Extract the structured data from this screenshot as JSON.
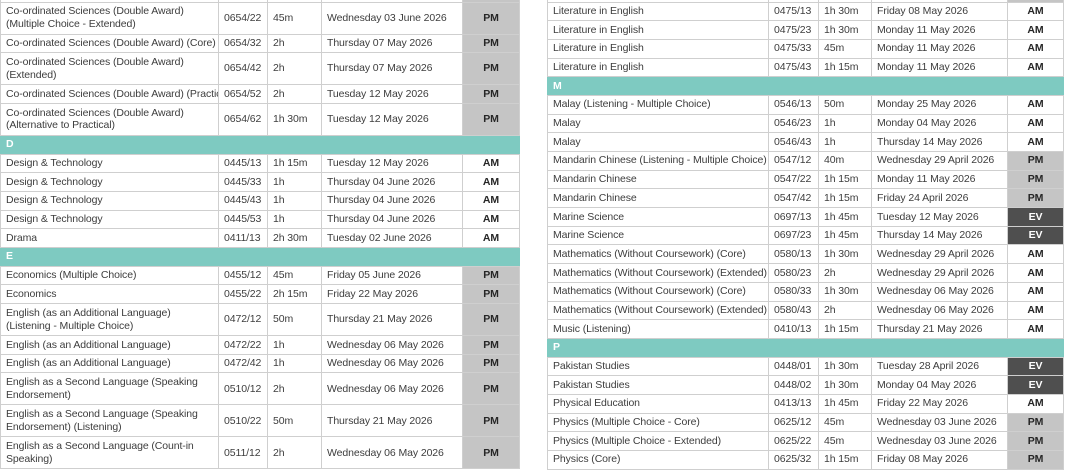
{
  "colors": {
    "section_bg": "#7ecac1",
    "section_fg": "#ffffff",
    "border": "#cfcfcf",
    "text": "#3d3d3d",
    "sessions": {
      "AM": {
        "bg": "#ffffff",
        "fg": "#262626"
      },
      "PM": {
        "bg": "#c5c5c5",
        "fg": "#262626"
      },
      "EV": {
        "bg": "#4f4f4f",
        "fg": "#ffffff"
      }
    }
  },
  "tables": [
    {
      "name": "timetable-left-column",
      "rows": [
        {
          "type": "partial",
          "session": "PM"
        },
        {
          "type": "row",
          "lines": 2,
          "subject": "Co-ordinated Sciences (Double Award) (Multiple Choice - Extended)",
          "code": "0654/22",
          "duration": "45m",
          "date": "Wednesday 03 June 2026",
          "session": "PM"
        },
        {
          "type": "row",
          "lines": 1,
          "subject": "Co-ordinated Sciences (Double Award) (Core)",
          "code": "0654/32",
          "duration": "2h",
          "date": "Thursday 07 May 2026",
          "session": "PM"
        },
        {
          "type": "row",
          "lines": 2,
          "subject": "Co-ordinated Sciences (Double Award) (Extended)",
          "code": "0654/42",
          "duration": "2h",
          "date": "Thursday 07 May 2026",
          "session": "PM"
        },
        {
          "type": "row",
          "lines": 1,
          "subject": "Co-ordinated Sciences (Double Award) (Practical)",
          "code": "0654/52",
          "duration": "2h",
          "date": "Tuesday 12 May 2026",
          "session": "PM"
        },
        {
          "type": "row",
          "lines": 2,
          "subject": "Co-ordinated Sciences (Double Award) (Alternative to Practical)",
          "code": "0654/62",
          "duration": "1h 30m",
          "date": "Tuesday 12 May 2026",
          "session": "PM"
        },
        {
          "type": "section",
          "letter": "D"
        },
        {
          "type": "row",
          "lines": 1,
          "subject": "Design & Technology",
          "code": "0445/13",
          "duration": "1h 15m",
          "date": "Tuesday 12 May 2026",
          "session": "AM"
        },
        {
          "type": "row",
          "lines": 1,
          "subject": "Design & Technology",
          "code": "0445/33",
          "duration": "1h",
          "date": "Thursday 04 June 2026",
          "session": "AM"
        },
        {
          "type": "row",
          "lines": 1,
          "subject": "Design & Technology",
          "code": "0445/43",
          "duration": "1h",
          "date": "Thursday 04 June 2026",
          "session": "AM"
        },
        {
          "type": "row",
          "lines": 1,
          "subject": "Design & Technology",
          "code": "0445/53",
          "duration": "1h",
          "date": "Thursday 04 June 2026",
          "session": "AM"
        },
        {
          "type": "row",
          "lines": 1,
          "subject": "Drama",
          "code": "0411/13",
          "duration": "2h 30m",
          "date": "Tuesday 02 June 2026",
          "session": "AM"
        },
        {
          "type": "section",
          "letter": "E"
        },
        {
          "type": "row",
          "lines": 1,
          "subject": "Economics (Multiple Choice)",
          "code": "0455/12",
          "duration": "45m",
          "date": "Friday 05 June 2026",
          "session": "PM"
        },
        {
          "type": "row",
          "lines": 1,
          "subject": "Economics",
          "code": "0455/22",
          "duration": "2h 15m",
          "date": "Friday 22 May 2026",
          "session": "PM"
        },
        {
          "type": "row",
          "lines": 2,
          "subject": "English (as an Additional Language) (Listening - Multiple Choice)",
          "code": "0472/12",
          "duration": "50m",
          "date": "Thursday 21 May 2026",
          "session": "PM"
        },
        {
          "type": "row",
          "lines": 1,
          "subject": "English (as an Additional Language)",
          "code": "0472/22",
          "duration": "1h",
          "date": "Wednesday 06 May 2026",
          "session": "PM"
        },
        {
          "type": "row",
          "lines": 1,
          "subject": "English (as an Additional Language)",
          "code": "0472/42",
          "duration": "1h",
          "date": "Wednesday 06 May 2026",
          "session": "PM"
        },
        {
          "type": "row",
          "lines": 2,
          "subject": "English as a Second Language (Speaking Endorsement)",
          "code": "0510/12",
          "duration": "2h",
          "date": "Wednesday 06 May 2026",
          "session": "PM"
        },
        {
          "type": "row",
          "lines": 2,
          "subject": "English as a Second Language (Speaking Endorsement) (Listening)",
          "code": "0510/22",
          "duration": "50m",
          "date": "Thursday 21 May 2026",
          "session": "PM"
        },
        {
          "type": "row",
          "lines": 2,
          "subject": "English as a Second Language (Count-in Speaking)",
          "code": "0511/12",
          "duration": "2h",
          "date": "Wednesday 06 May 2026",
          "session": "PM"
        }
      ]
    },
    {
      "name": "timetable-right-column",
      "rows": [
        {
          "type": "partial",
          "session": "PM"
        },
        {
          "type": "row",
          "lines": 1,
          "subject": "Literature in English",
          "code": "0475/13",
          "duration": "1h 30m",
          "date": "Friday 08 May 2026",
          "session": "AM"
        },
        {
          "type": "row",
          "lines": 1,
          "subject": "Literature in English",
          "code": "0475/23",
          "duration": "1h 30m",
          "date": "Monday 11 May 2026",
          "session": "AM"
        },
        {
          "type": "row",
          "lines": 1,
          "subject": "Literature in English",
          "code": "0475/33",
          "duration": "45m",
          "date": "Monday 11 May 2026",
          "session": "AM"
        },
        {
          "type": "row",
          "lines": 1,
          "subject": "Literature in English",
          "code": "0475/43",
          "duration": "1h 15m",
          "date": "Monday 11 May 2026",
          "session": "AM"
        },
        {
          "type": "section",
          "letter": "M"
        },
        {
          "type": "row",
          "lines": 1,
          "subject": "Malay (Listening - Multiple Choice)",
          "code": "0546/13",
          "duration": "50m",
          "date": "Monday 25 May 2026",
          "session": "AM"
        },
        {
          "type": "row",
          "lines": 1,
          "subject": "Malay",
          "code": "0546/23",
          "duration": "1h",
          "date": "Monday 04 May 2026",
          "session": "AM"
        },
        {
          "type": "row",
          "lines": 1,
          "subject": "Malay",
          "code": "0546/43",
          "duration": "1h",
          "date": "Thursday 14 May 2026",
          "session": "AM"
        },
        {
          "type": "row",
          "lines": 1,
          "subject": "Mandarin Chinese (Listening - Multiple Choice)",
          "code": "0547/12",
          "duration": "40m",
          "date": "Wednesday 29 April 2026",
          "session": "PM"
        },
        {
          "type": "row",
          "lines": 1,
          "subject": "Mandarin Chinese",
          "code": "0547/22",
          "duration": "1h 15m",
          "date": "Monday 11 May 2026",
          "session": "PM"
        },
        {
          "type": "row",
          "lines": 1,
          "subject": "Mandarin Chinese",
          "code": "0547/42",
          "duration": "1h 15m",
          "date": "Friday 24 April 2026",
          "session": "PM"
        },
        {
          "type": "row",
          "lines": 1,
          "subject": "Marine Science",
          "code": "0697/13",
          "duration": "1h 45m",
          "date": "Tuesday 12 May 2026",
          "session": "EV"
        },
        {
          "type": "row",
          "lines": 1,
          "subject": "Marine Science",
          "code": "0697/23",
          "duration": "1h 45m",
          "date": "Thursday 14 May 2026",
          "session": "EV"
        },
        {
          "type": "row",
          "lines": 1,
          "subject": "Mathematics (Without Coursework) (Core)",
          "code": "0580/13",
          "duration": "1h 30m",
          "date": "Wednesday 29 April 2026",
          "session": "AM"
        },
        {
          "type": "row",
          "lines": 1,
          "subject": "Mathematics (Without Coursework) (Extended)",
          "code": "0580/23",
          "duration": "2h",
          "date": "Wednesday 29 April 2026",
          "session": "AM"
        },
        {
          "type": "row",
          "lines": 1,
          "subject": "Mathematics (Without Coursework) (Core)",
          "code": "0580/33",
          "duration": "1h 30m",
          "date": "Wednesday 06 May 2026",
          "session": "AM"
        },
        {
          "type": "row",
          "lines": 1,
          "subject": "Mathematics (Without Coursework) (Extended)",
          "code": "0580/43",
          "duration": "2h",
          "date": "Wednesday 06 May 2026",
          "session": "AM"
        },
        {
          "type": "row",
          "lines": 1,
          "subject": "Music (Listening)",
          "code": "0410/13",
          "duration": "1h 15m",
          "date": "Thursday 21 May 2026",
          "session": "AM"
        },
        {
          "type": "section",
          "letter": "P"
        },
        {
          "type": "row",
          "lines": 1,
          "subject": "Pakistan Studies",
          "code": "0448/01",
          "duration": "1h 30m",
          "date": "Tuesday 28 April 2026",
          "session": "EV"
        },
        {
          "type": "row",
          "lines": 1,
          "subject": "Pakistan Studies",
          "code": "0448/02",
          "duration": "1h 30m",
          "date": "Monday 04 May 2026",
          "session": "EV"
        },
        {
          "type": "row",
          "lines": 1,
          "subject": "Physical Education",
          "code": "0413/13",
          "duration": "1h 45m",
          "date": "Friday 22 May 2026",
          "session": "AM"
        },
        {
          "type": "row",
          "lines": 1,
          "subject": "Physics (Multiple Choice - Core)",
          "code": "0625/12",
          "duration": "45m",
          "date": "Wednesday 03 June 2026",
          "session": "PM"
        },
        {
          "type": "row",
          "lines": 1,
          "subject": "Physics (Multiple Choice - Extended)",
          "code": "0625/22",
          "duration": "45m",
          "date": "Wednesday 03 June 2026",
          "session": "PM"
        },
        {
          "type": "row",
          "lines": 1,
          "subject": "Physics (Core)",
          "code": "0625/32",
          "duration": "1h 15m",
          "date": "Friday 08 May 2026",
          "session": "PM"
        }
      ]
    }
  ]
}
